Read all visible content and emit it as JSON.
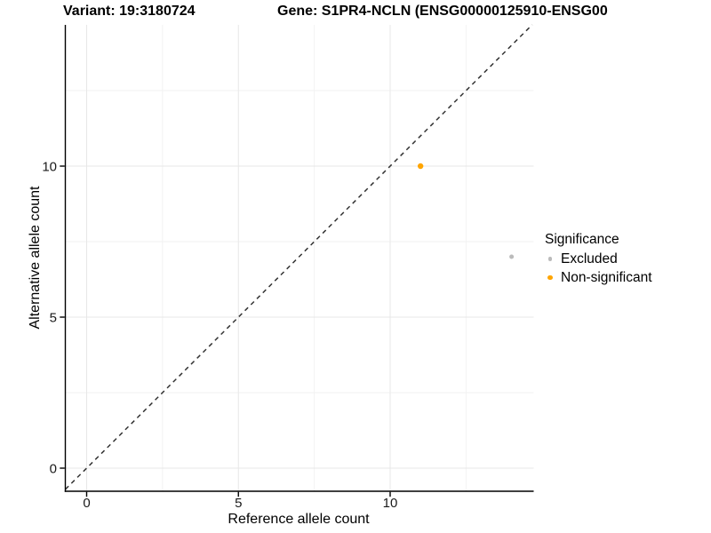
{
  "titles": {
    "variant": "Variant: 19:3180724",
    "gene": "Gene: S1PR4-NCLN (ENSG00000125910-ENSG00"
  },
  "axes": {
    "x_label": "Reference allele count",
    "y_label": "Alternative allele count"
  },
  "legend": {
    "title": "Significance",
    "items": [
      {
        "label": "Excluded",
        "color": "#bbbbbb",
        "dot_radius": 2.2
      },
      {
        "label": "Non-significant",
        "color": "#ffa500",
        "dot_radius": 2.7
      }
    ]
  },
  "chart_data": {
    "type": "scatter",
    "title": "Variant: 19:3180724",
    "subtitle": "Gene: S1PR4-NCLN (ENSG00000125910-ENSG00",
    "xlabel": "Reference allele count",
    "ylabel": "Alternative allele count",
    "xlim": [
      -0.7,
      14.73
    ],
    "ylim": [
      -0.76,
      14.68
    ],
    "x_ticks": [
      0,
      5,
      10
    ],
    "y_ticks": [
      0,
      5,
      10
    ],
    "x_minor_gridlines": [
      2.5,
      7.5,
      12.5
    ],
    "y_minor_gridlines": [
      2.5,
      7.5,
      12.5
    ],
    "grid": "major-and-minor",
    "legend_title": "Significance",
    "legend_position": "right",
    "series": [
      {
        "name": "Excluded",
        "color": "#bbbbbb",
        "point_radius": 2.5,
        "points": [
          {
            "x": 14,
            "y": 7
          }
        ]
      },
      {
        "name": "Non-significant",
        "color": "#ffa500",
        "point_radius": 3.2,
        "points": [
          {
            "x": 11,
            "y": 10
          }
        ]
      }
    ],
    "identity_line": {
      "slope": 1,
      "intercept": 0,
      "style": "dashed",
      "color": "#333333"
    }
  }
}
